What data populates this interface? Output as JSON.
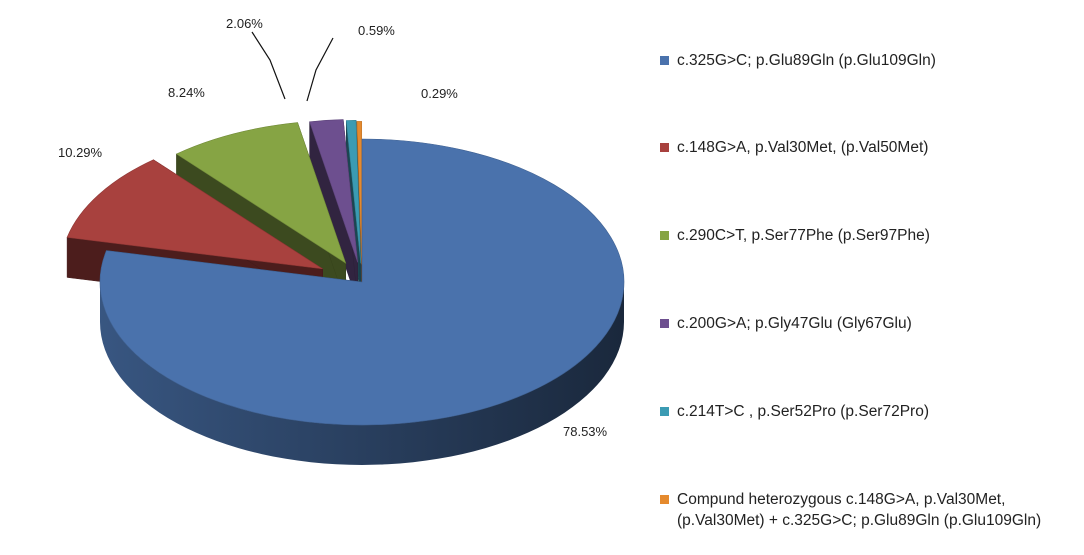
{
  "chart_data": {
    "type": "pie",
    "style": "3d-exploded",
    "categories": [
      "c.325G>C; p.Glu89Gln (p.Glu109Gln)",
      "c.148G>A, p.Val30Met, (p.Val50Met)",
      "c.290C>T, p.Ser77Phe (p.Ser97Phe)",
      "c.200G>A; p.Gly47Glu (Gly67Glu)",
      "c.214T>C , p.Ser52Pro (p.Ser72Pro)",
      "Compund heterozygous c.148G>A, p.Val30Met,\n(p.Val30Met)  + c.325G>C; p.Glu89Gln (p.Glu109Gln)"
    ],
    "values": [
      78.53,
      10.29,
      8.24,
      2.06,
      0.59,
      0.29
    ],
    "data_labels": [
      "78.53%",
      "10.29%",
      "8.24%",
      "2.06%",
      "0.59%",
      "0.29%"
    ],
    "colors": [
      "#4a72ac",
      "#a8413e",
      "#86a444",
      "#6d4f8f",
      "#3b9bb3",
      "#e58a2e"
    ],
    "legend_position": "right"
  }
}
